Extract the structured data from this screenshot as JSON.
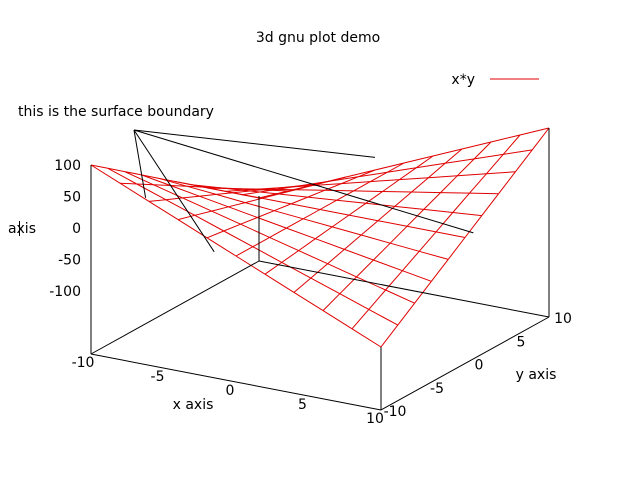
{
  "chart_data": {
    "type": "surface3d",
    "title": "3d gnu plot demo",
    "xlabel": "x axis",
    "ylabel": "y axis",
    "zlabel": "axis",
    "function": "x*y",
    "legend": {
      "entries": [
        {
          "label": "x*y",
          "color": "#e00000"
        }
      ],
      "position": "top-right"
    },
    "annotation": "this is the surface boundary",
    "xlim": [
      -10,
      10
    ],
    "ylim": [
      -10,
      10
    ],
    "zlim": [
      -100,
      100
    ],
    "x_ticks": [
      -10,
      -5,
      0,
      5,
      10
    ],
    "y_ticks": [
      -10,
      -5,
      0,
      5,
      10
    ],
    "z_ticks": [
      100,
      50,
      0,
      -50,
      -100
    ],
    "grid_n": 10,
    "surface_color": "#e00000"
  }
}
